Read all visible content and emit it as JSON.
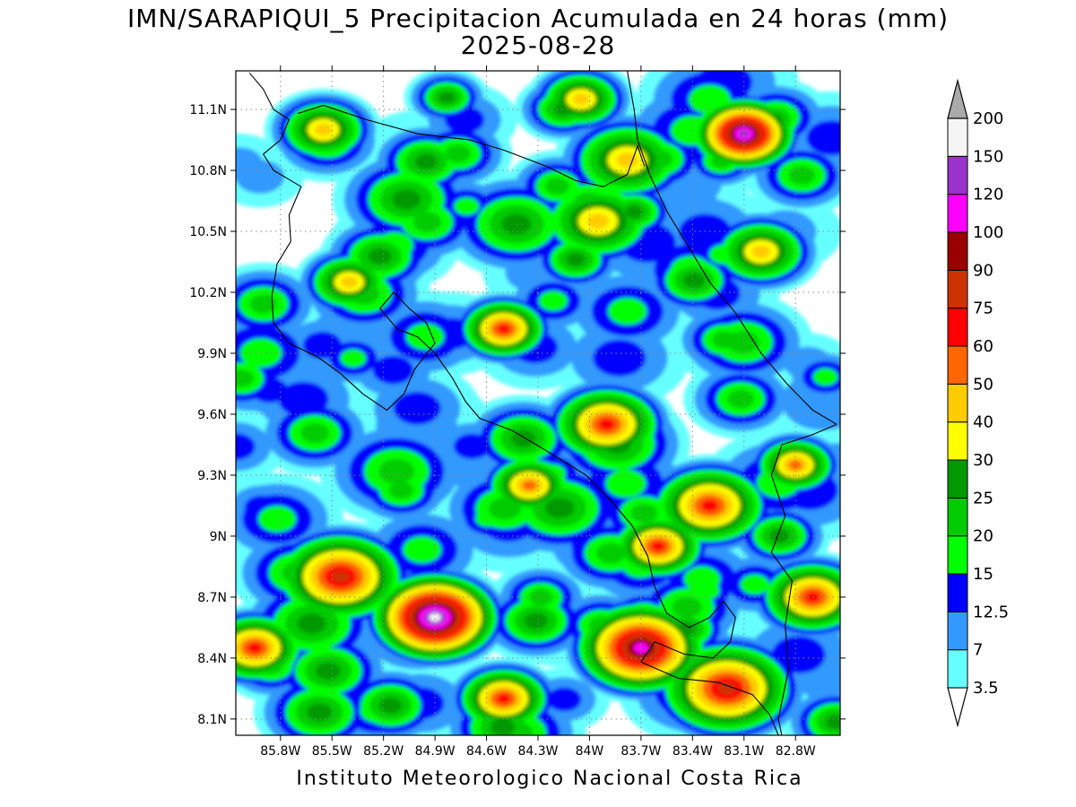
{
  "header": {
    "title": "IMN/SARAPIQUI_5 Precipitacion Acumulada en 24 horas (mm)",
    "date": "2025-08-28"
  },
  "footer": {
    "credit": "Instituto Meteorologico Nacional Costa Rica"
  },
  "map": {
    "lon_range": [
      -86.06,
      -82.54
    ],
    "lat_range": [
      8.02,
      11.29
    ],
    "x_ticks": [
      {
        "value": -85.8,
        "label": "85.8W"
      },
      {
        "value": -85.5,
        "label": "85.5W"
      },
      {
        "value": -85.2,
        "label": "85.2W"
      },
      {
        "value": -84.9,
        "label": "84.9W"
      },
      {
        "value": -84.6,
        "label": "84.6W"
      },
      {
        "value": -84.3,
        "label": "84.3W"
      },
      {
        "value": -84.0,
        "label": "84W"
      },
      {
        "value": -83.7,
        "label": "83.7W"
      },
      {
        "value": -83.4,
        "label": "83.4W"
      },
      {
        "value": -83.1,
        "label": "83.1W"
      },
      {
        "value": -82.8,
        "label": "82.8W"
      }
    ],
    "y_ticks": [
      {
        "value": 8.1,
        "label": "8.1N"
      },
      {
        "value": 8.4,
        "label": "8.4N"
      },
      {
        "value": 8.7,
        "label": "8.7N"
      },
      {
        "value": 9.0,
        "label": "9N"
      },
      {
        "value": 9.3,
        "label": "9.3N"
      },
      {
        "value": 9.6,
        "label": "9.6N"
      },
      {
        "value": 9.9,
        "label": "9.9N"
      },
      {
        "value": 10.2,
        "label": "10.2N"
      },
      {
        "value": 10.5,
        "label": "10.5N"
      },
      {
        "value": 10.8,
        "label": "10.8N"
      },
      {
        "value": 11.1,
        "label": "11.1N"
      }
    ],
    "grid": true,
    "coastline": [
      [
        -85.98,
        11.28
      ],
      [
        -85.9,
        11.2
      ],
      [
        -85.84,
        11.1
      ],
      [
        -85.75,
        11.05
      ],
      [
        -85.8,
        10.95
      ],
      [
        -85.9,
        10.88
      ],
      [
        -85.84,
        10.8
      ],
      [
        -85.68,
        10.72
      ],
      [
        -85.75,
        10.58
      ],
      [
        -85.74,
        10.45
      ],
      [
        -85.82,
        10.34
      ],
      [
        -85.85,
        10.18
      ],
      [
        -85.84,
        10.05
      ],
      [
        -85.75,
        9.95
      ],
      [
        -85.58,
        9.88
      ],
      [
        -85.45,
        9.8
      ],
      [
        -85.32,
        9.7
      ],
      [
        -85.18,
        9.62
      ],
      [
        -85.08,
        9.7
      ],
      [
        -85.02,
        9.82
      ],
      [
        -84.9,
        9.95
      ],
      [
        -84.95,
        10.05
      ],
      [
        -85.05,
        10.12
      ],
      [
        -85.14,
        10.2
      ],
      [
        -85.22,
        10.12
      ],
      [
        -85.12,
        10.02
      ],
      [
        -85.0,
        9.98
      ],
      [
        -84.9,
        9.9
      ],
      [
        -84.8,
        9.78
      ],
      [
        -84.72,
        9.66
      ],
      [
        -84.64,
        9.58
      ],
      [
        -84.45,
        9.52
      ],
      [
        -84.25,
        9.42
      ],
      [
        -84.02,
        9.3
      ],
      [
        -83.88,
        9.18
      ],
      [
        -83.75,
        9.05
      ],
      [
        -83.66,
        8.9
      ],
      [
        -83.62,
        8.75
      ],
      [
        -83.55,
        8.62
      ],
      [
        -83.42,
        8.55
      ],
      [
        -83.3,
        8.6
      ],
      [
        -83.22,
        8.68
      ],
      [
        -83.15,
        8.6
      ],
      [
        -83.18,
        8.48
      ],
      [
        -83.28,
        8.4
      ],
      [
        -83.45,
        8.42
      ],
      [
        -83.62,
        8.48
      ],
      [
        -83.7,
        8.38
      ],
      [
        -83.48,
        8.3
      ],
      [
        -83.25,
        8.28
      ],
      [
        -83.05,
        8.22
      ],
      [
        -82.95,
        8.12
      ],
      [
        -82.9,
        8.02
      ]
    ],
    "caribbean_coast": [
      [
        -83.78,
        11.29
      ],
      [
        -83.74,
        11.1
      ],
      [
        -83.72,
        10.95
      ],
      [
        -83.65,
        10.78
      ],
      [
        -83.55,
        10.6
      ],
      [
        -83.42,
        10.42
      ],
      [
        -83.3,
        10.25
      ],
      [
        -83.15,
        10.1
      ],
      [
        -83.0,
        9.9
      ],
      [
        -82.85,
        9.75
      ],
      [
        -82.7,
        9.62
      ],
      [
        -82.56,
        9.55
      ]
    ],
    "border_north": [
      [
        -85.7,
        11.08
      ],
      [
        -85.55,
        11.12
      ],
      [
        -85.3,
        11.05
      ],
      [
        -85.0,
        10.98
      ],
      [
        -84.7,
        10.95
      ],
      [
        -84.5,
        10.9
      ],
      [
        -84.25,
        10.82
      ],
      [
        -84.08,
        10.75
      ],
      [
        -83.92,
        10.72
      ],
      [
        -83.78,
        10.78
      ],
      [
        -83.72,
        10.92
      ],
      [
        -83.68,
        10.82
      ]
    ],
    "border_south": [
      [
        -82.56,
        9.55
      ],
      [
        -82.7,
        9.5
      ],
      [
        -82.88,
        9.45
      ],
      [
        -82.94,
        9.3
      ],
      [
        -82.86,
        9.1
      ],
      [
        -82.94,
        8.92
      ],
      [
        -82.82,
        8.78
      ],
      [
        -82.86,
        8.56
      ],
      [
        -82.84,
        8.35
      ],
      [
        -82.9,
        8.1
      ],
      [
        -82.88,
        8.02
      ]
    ]
  },
  "colorbar": {
    "levels": [
      "3.5",
      "7",
      "12.5",
      "15",
      "20",
      "25",
      "30",
      "40",
      "50",
      "60",
      "75",
      "90",
      "100",
      "120",
      "150",
      "200"
    ],
    "colors": [
      "#66ffff",
      "#3399ff",
      "#0000ff",
      "#00ff00",
      "#00cc00",
      "#009900",
      "#ffff00",
      "#ffcc00",
      "#ff6600",
      "#ff0000",
      "#cc3300",
      "#990000",
      "#ff00ff",
      "#9933cc",
      "#f5f5f5"
    ],
    "under_color": "#ffffff",
    "over_color": "#aaaaaa"
  }
}
